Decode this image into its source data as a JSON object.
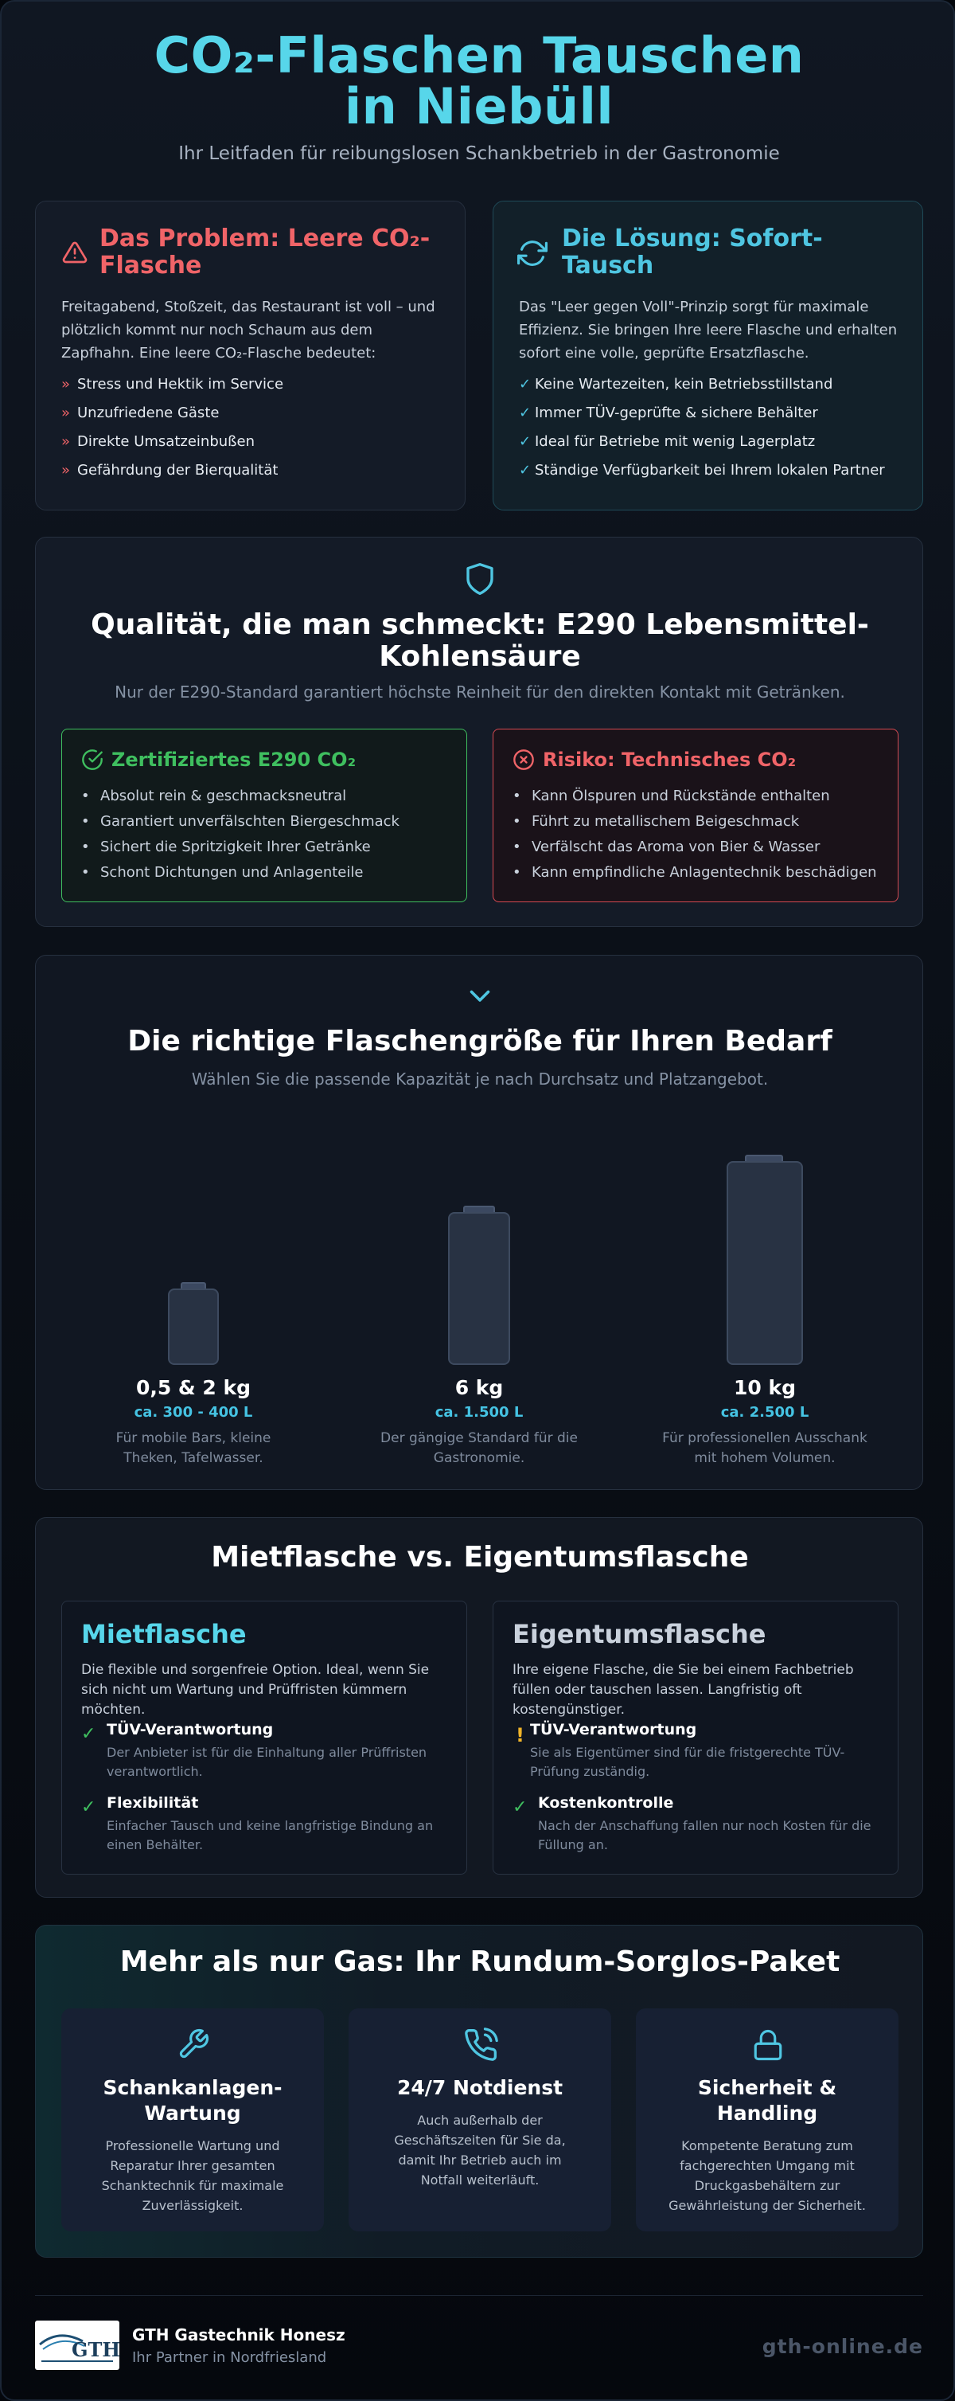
{
  "hero": {
    "title": "CO₂-Flaschen Tauschen in Niebüll",
    "subtitle": "Ihr Leitfaden für reibungslosen Schankbetrieb in der Gastronomie"
  },
  "problem": {
    "icon": "warning-triangle-icon",
    "title": "Das Problem: Leere CO₂-Flasche",
    "text": "Freitagabend, Stoßzeit, das Restaurant ist voll – und plötzlich kommt nur noch Schaum aus dem Zapfhahn. Eine leere CO₂-Flasche bedeutet:",
    "marker": "»",
    "items": [
      "Stress und Hektik im Service",
      "Unzufriedene Gäste",
      "Direkte Umsatzeinbußen",
      "Gefährdung der Bierqualität"
    ]
  },
  "solution": {
    "icon": "refresh-icon",
    "title": "Die Lösung: Sofort-Tausch",
    "text": "Das \"Leer gegen Voll\"-Prinzip sorgt für maximale Effizienz. Sie bringen Ihre leere Flasche und erhalten sofort eine volle, geprüfte Ersatzflasche.",
    "marker": "✓",
    "items": [
      "Keine Wartezeiten, kein Betriebsstillstand",
      "Immer TÜV-geprüfte & sichere Behälter",
      "Ideal für Betriebe mit wenig Lagerplatz",
      "Ständige Verfügbarkeit bei Ihrem lokalen Partner"
    ]
  },
  "quality": {
    "icon": "shield-icon",
    "title": "Qualität, die man schmeckt: E290 Lebensmittel-Kohlensäure",
    "subtitle": "Nur der E290-Standard garantiert höchste Reinheit für den direkten Kontakt mit Getränken.",
    "good": {
      "icon": "check-circle-icon",
      "title": "Zertifiziertes E290 CO₂",
      "items": [
        "Absolut rein & geschmacksneutral",
        "Garantiert unverfälschten Biergeschmack",
        "Sichert die Spritzigkeit Ihrer Getränke",
        "Schont Dichtungen und Anlagenteile"
      ]
    },
    "bad": {
      "icon": "x-circle-icon",
      "title": "Risiko: Technisches CO₂",
      "items": [
        "Kann Ölspuren und Rückstände enthalten",
        "Führt zu metallischem Beigeschmack",
        "Verfälscht das Aroma von Bier & Wasser",
        "Kann empfindliche Anlagentechnik beschädigen"
      ]
    },
    "bullet": "•"
  },
  "sizes": {
    "icon": "chevron-down-icon",
    "title": "Die richtige Flaschengröße für Ihren Bedarf",
    "subtitle": "Wählen Sie die passende Kapazität je nach Durchsatz und Platzangebot.",
    "bottles": [
      {
        "size": "0,5 & 2 kg",
        "capacity": "ca. 300 - 400 L",
        "desc": "Für mobile Bars, kleine Theken, Tafelwasser."
      },
      {
        "size": "6 kg",
        "capacity": "ca. 1.500 L",
        "desc": "Der gängige Standard für die Gastronomie."
      },
      {
        "size": "10 kg",
        "capacity": "ca. 2.500 L",
        "desc": "Für professionellen Ausschank mit hohem Volumen."
      }
    ]
  },
  "compare": {
    "title": "Mietflasche vs. Eigentumsflasche",
    "rent": {
      "title": "Mietflasche",
      "text": "Die flexible und sorgenfreie Option. Ideal, wenn Sie sich nicht um Wartung und Prüffristen kümmern möchten.",
      "items": [
        {
          "mark": "✓",
          "title": "TÜV-Verantwortung",
          "desc": "Der Anbieter ist für die Einhaltung aller Prüffristen verantwortlich."
        },
        {
          "mark": "✓",
          "title": "Flexibilität",
          "desc": "Einfacher Tausch und keine langfristige Bindung an einen Behälter."
        }
      ]
    },
    "own": {
      "title": "Eigentumsflasche",
      "text": "Ihre eigene Flasche, die Sie bei einem Fachbetrieb füllen oder tauschen lassen. Langfristig oft kostengünstiger.",
      "items": [
        {
          "mark": "!",
          "title": "TÜV-Verantwortung",
          "desc": "Sie als Eigentümer sind für die fristgerechte TÜV-Prüfung zuständig."
        },
        {
          "mark": "✓",
          "title": "Kostenkontrolle",
          "desc": "Nach der Anschaffung fallen nur noch Kosten für die Füllung an."
        }
      ]
    }
  },
  "services": {
    "title": "Mehr als nur Gas: Ihr Rundum-Sorglos-Paket",
    "items": [
      {
        "icon": "wrench-icon",
        "title": "Schankanlagen-Wartung",
        "desc": "Professionelle Wartung und Reparatur Ihrer gesamten Schanktechnik für maximale Zuverlässigkeit."
      },
      {
        "icon": "phone-icon",
        "title": "24/7 Notdienst",
        "desc": "Auch außerhalb der Geschäftszeiten für Sie da, damit Ihr Betrieb auch im Notfall weiterläuft."
      },
      {
        "icon": "lock-icon",
        "title": "Sicherheit & Handling",
        "desc": "Kompetente Beratung zum fachgerechten Umgang mit Druckgasbehältern zur Gewährleistung der Sicherheit."
      }
    ]
  },
  "footer": {
    "logo_text": "GTH",
    "company": "GTH Gastechnik Honesz",
    "tagline": "Ihr Partner in Nordfriesland",
    "website": "gth-online.de"
  },
  "colors": {
    "accent_cyan": "#57d6ea",
    "danger_red": "#f06468",
    "success_green": "#3fbf5f",
    "warning_amber": "#f0b429",
    "background": "#0b1018"
  }
}
